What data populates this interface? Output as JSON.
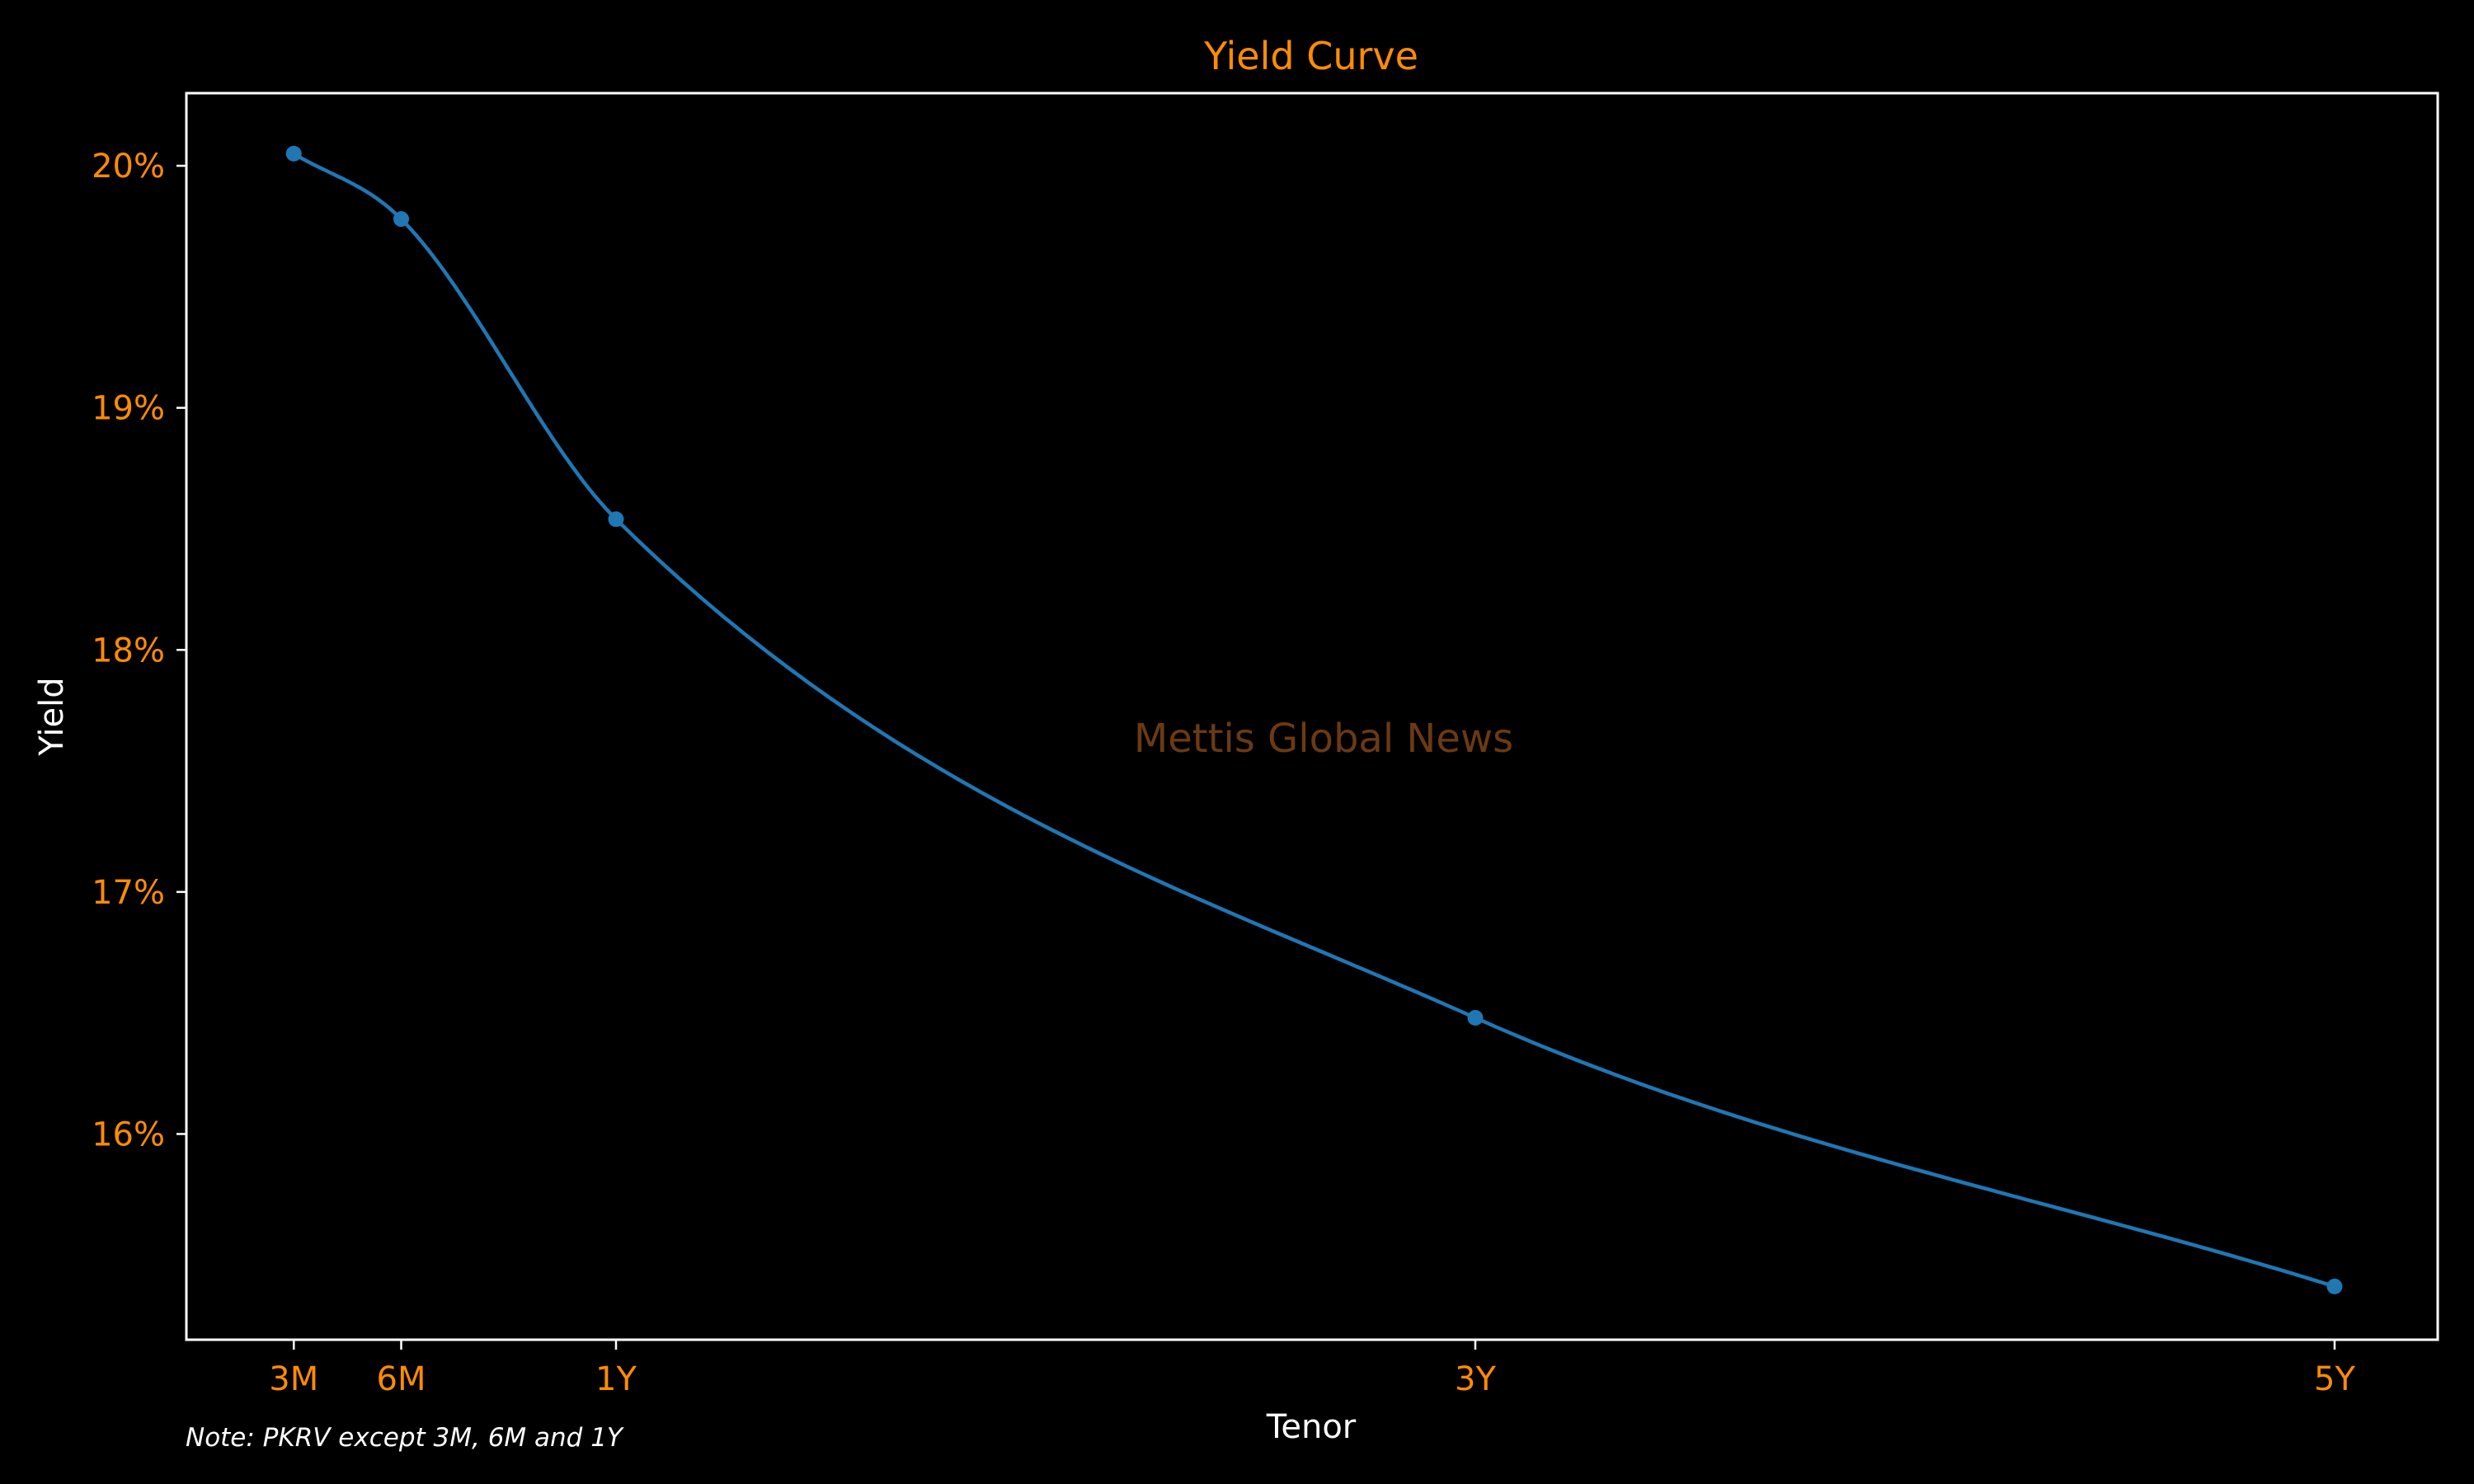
{
  "chart_data": {
    "type": "line",
    "title": "Yield Curve",
    "xlabel": "Tenor",
    "ylabel": "Yield",
    "x_tick_labels": [
      "3M",
      "6M",
      "1Y",
      "3Y",
      "5Y"
    ],
    "x_values_years": [
      0.25,
      0.5,
      1,
      3,
      5
    ],
    "y_tick_labels": [
      "16%",
      "17%",
      "18%",
      "19%",
      "20%"
    ],
    "y_ticks": [
      16,
      17,
      18,
      19,
      20
    ],
    "ylim": [
      15.15,
      20.3
    ],
    "series": [
      {
        "values": [
          20.05,
          19.78,
          18.54,
          16.48,
          15.37
        ],
        "color": "#1f77b4"
      }
    ],
    "grid": false,
    "watermark": "Mettis Global News",
    "note": "Note: PKRV except 3M, 6M and 1Y",
    "colors": {
      "background": "#000000",
      "line": "#1f77b4",
      "tick_text": "#ff8c00",
      "title_text": "#ff8c00",
      "axis_label_text": "#ffffff",
      "frame": "#ffffff",
      "watermark_text": "#6b3a12"
    }
  }
}
